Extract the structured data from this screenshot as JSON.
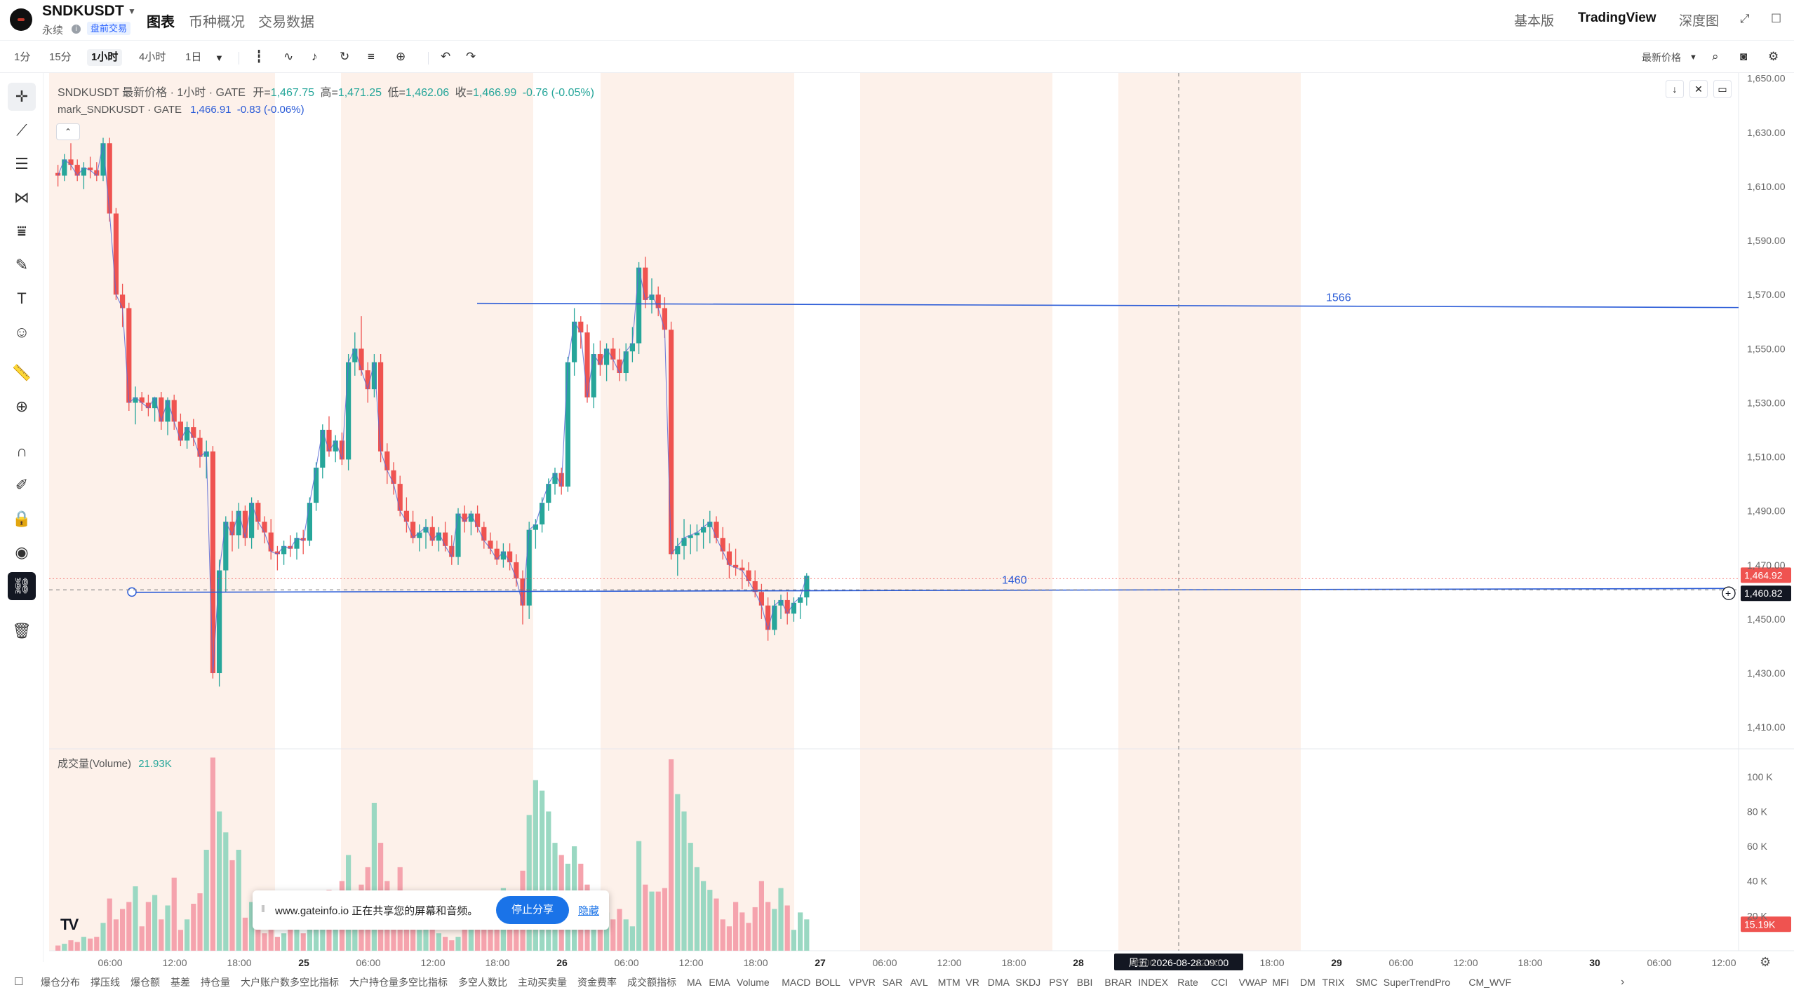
{
  "header": {
    "symbol": "SNDKUSDT",
    "contract_type": "永续",
    "badge": "盘前交易",
    "tabs": [
      {
        "label": "图表",
        "active": true
      },
      {
        "label": "币种概况",
        "active": false
      },
      {
        "label": "交易数据",
        "active": false
      }
    ],
    "views": [
      {
        "label": "基本版",
        "active": false
      },
      {
        "label": "TradingView",
        "active": true
      },
      {
        "label": "深度图",
        "active": false
      }
    ]
  },
  "toolbar": {
    "timeframes": [
      {
        "label": "1分",
        "active": false
      },
      {
        "label": "15分",
        "active": false
      },
      {
        "label": "1小时",
        "active": true
      },
      {
        "label": "4小时",
        "active": false
      },
      {
        "label": "1日",
        "active": false
      }
    ],
    "price_mode": "最新价格"
  },
  "legend": {
    "title": "SNDKUSDT 最新价格 · 1小时 · GATE",
    "open_label": "开=",
    "open": "1,467.75",
    "high_label": "高=",
    "high": "1,471.25",
    "low_label": "低=",
    "low": "1,462.06",
    "close_label": "收=",
    "close": "1,466.99",
    "change": "-0.76 (-0.05%)",
    "mark_name": "mark_SNDKUSDT · GATE",
    "mark_value": "1,466.91",
    "mark_change": "-0.83 (-0.06%)",
    "volume_label": "成交量(Volume)",
    "volume_value": "21.93K"
  },
  "drawings": {
    "upper_line_label": "1566",
    "lower_line_label": "1460"
  },
  "price_labels": {
    "current_red": "1,464.92",
    "crosshair": "1,460.82",
    "volume_current": "15.19K"
  },
  "crosshair_time": "周五 2026-08-28   09:00",
  "colors": {
    "up": "#26a69a",
    "down": "#ef5350",
    "up_volume": "#9ad8c2",
    "down_volume": "#f5a3ad",
    "session_shade": "#fdf1ea",
    "drawing_line": "#2a5bd7"
  },
  "chart_data": {
    "type": "candlestick",
    "interval": "1小时",
    "price_axis": [
      "1,650.00",
      "1,630.00",
      "1,610.00",
      "1,590.00",
      "1,570.00",
      "1,550.00",
      "1,530.00",
      "1,510.00",
      "1,490.00",
      "1,470.00",
      "1,450.00",
      "1,430.00",
      "1,410.00"
    ],
    "price_range": [
      1402,
      1652
    ],
    "volume_axis": [
      "100 K",
      "80 K",
      "60 K",
      "40 K",
      "20 K"
    ],
    "time_axis": [
      "06:00",
      "12:00",
      "18:00",
      "25",
      "06:00",
      "12:00",
      "18:00",
      "26",
      "06:00",
      "12:00",
      "18:00",
      "27",
      "06:00",
      "12:00",
      "18:00",
      "28",
      "06:00",
      "12:00",
      "18:00",
      "29",
      "06:00",
      "12:00",
      "18:00",
      "30",
      "06:00",
      "12:00"
    ],
    "horizontal_lines": [
      1566,
      1460
    ],
    "candles_ohlcv": [
      [
        1615,
        1618,
        1610,
        1614,
        3
      ],
      [
        1614,
        1622,
        1612,
        1620,
        4
      ],
      [
        1620,
        1626,
        1616,
        1618,
        6
      ],
      [
        1618,
        1620,
        1612,
        1614,
        5
      ],
      [
        1614,
        1619,
        1609,
        1617,
        8
      ],
      [
        1617,
        1621,
        1613,
        1616,
        7
      ],
      [
        1616,
        1619,
        1612,
        1614,
        8
      ],
      [
        1614,
        1628,
        1612,
        1626,
        16
      ],
      [
        1626,
        1628,
        1597,
        1600,
        30
      ],
      [
        1600,
        1602,
        1568,
        1570,
        18
      ],
      [
        1570,
        1574,
        1558,
        1565,
        24
      ],
      [
        1565,
        1567,
        1527,
        1530,
        28
      ],
      [
        1530,
        1536,
        1522,
        1532,
        37
      ],
      [
        1532,
        1534,
        1527,
        1530,
        14
      ],
      [
        1530,
        1533,
        1525,
        1528,
        28
      ],
      [
        1528,
        1531,
        1523,
        1532,
        32
      ],
      [
        1532,
        1534,
        1520,
        1523,
        18
      ],
      [
        1523,
        1532,
        1518,
        1531,
        26
      ],
      [
        1531,
        1533,
        1520,
        1523,
        42
      ],
      [
        1523,
        1526,
        1514,
        1516,
        12
      ],
      [
        1516,
        1523,
        1513,
        1521,
        18
      ],
      [
        1521,
        1524,
        1514,
        1517,
        27
      ],
      [
        1517,
        1520,
        1506,
        1510,
        33
      ],
      [
        1510,
        1516,
        1502,
        1512,
        58
      ],
      [
        1512,
        1514,
        1428,
        1430,
        111
      ],
      [
        1430,
        1472,
        1425,
        1468,
        80
      ],
      [
        1468,
        1488,
        1460,
        1486,
        68
      ],
      [
        1486,
        1490,
        1475,
        1481,
        52
      ],
      [
        1481,
        1493,
        1476,
        1490,
        58
      ],
      [
        1490,
        1492,
        1477,
        1480,
        19
      ],
      [
        1480,
        1495,
        1476,
        1493,
        28
      ],
      [
        1493,
        1494,
        1483,
        1486,
        15
      ],
      [
        1486,
        1488,
        1478,
        1482,
        10
      ],
      [
        1482,
        1487,
        1472,
        1475,
        12
      ],
      [
        1475,
        1477,
        1468,
        1474,
        8
      ],
      [
        1474,
        1479,
        1470,
        1477,
        10
      ],
      [
        1477,
        1481,
        1473,
        1476,
        28
      ],
      [
        1476,
        1482,
        1472,
        1480,
        15
      ],
      [
        1480,
        1483,
        1474,
        1479,
        10
      ],
      [
        1479,
        1495,
        1477,
        1493,
        22
      ],
      [
        1493,
        1508,
        1490,
        1506,
        20
      ],
      [
        1506,
        1522,
        1502,
        1520,
        28
      ],
      [
        1520,
        1525,
        1510,
        1512,
        35
      ],
      [
        1512,
        1518,
        1508,
        1516,
        24
      ],
      [
        1516,
        1519,
        1507,
        1509,
        40
      ],
      [
        1509,
        1548,
        1505,
        1545,
        55
      ],
      [
        1545,
        1556,
        1540,
        1550,
        24
      ],
      [
        1550,
        1562,
        1540,
        1542,
        38
      ],
      [
        1542,
        1545,
        1530,
        1535,
        48
      ],
      [
        1535,
        1548,
        1532,
        1545,
        85
      ],
      [
        1545,
        1548,
        1508,
        1512,
        62
      ],
      [
        1512,
        1515,
        1500,
        1505,
        40
      ],
      [
        1505,
        1508,
        1496,
        1500,
        26
      ],
      [
        1500,
        1503,
        1488,
        1490,
        48
      ],
      [
        1490,
        1495,
        1482,
        1486,
        22
      ],
      [
        1486,
        1490,
        1478,
        1480,
        20
      ],
      [
        1480,
        1485,
        1475,
        1482,
        12
      ],
      [
        1482,
        1487,
        1476,
        1484,
        18
      ],
      [
        1484,
        1488,
        1477,
        1479,
        15
      ],
      [
        1479,
        1484,
        1475,
        1482,
        10
      ],
      [
        1482,
        1486,
        1475,
        1477,
        8
      ],
      [
        1477,
        1481,
        1470,
        1473,
        6
      ],
      [
        1473,
        1491,
        1470,
        1489,
        8
      ],
      [
        1489,
        1492,
        1482,
        1486,
        14
      ],
      [
        1486,
        1490,
        1481,
        1489,
        25
      ],
      [
        1489,
        1492,
        1482,
        1484,
        34
      ],
      [
        1484,
        1486,
        1476,
        1479,
        28
      ],
      [
        1479,
        1482,
        1474,
        1476,
        20
      ],
      [
        1476,
        1479,
        1470,
        1472,
        28
      ],
      [
        1472,
        1478,
        1469,
        1475,
        36
      ],
      [
        1475,
        1478,
        1468,
        1471,
        28
      ],
      [
        1471,
        1474,
        1462,
        1465,
        30
      ],
      [
        1465,
        1468,
        1448,
        1455,
        46
      ],
      [
        1455,
        1486,
        1450,
        1483,
        78
      ],
      [
        1483,
        1487,
        1476,
        1485,
        98
      ],
      [
        1485,
        1495,
        1482,
        1493,
        92
      ],
      [
        1493,
        1502,
        1490,
        1500,
        80
      ],
      [
        1500,
        1506,
        1496,
        1504,
        62
      ],
      [
        1504,
        1506,
        1496,
        1499,
        55
      ],
      [
        1499,
        1547,
        1497,
        1545,
        50
      ],
      [
        1545,
        1565,
        1540,
        1560,
        60
      ],
      [
        1560,
        1562,
        1550,
        1556,
        50
      ],
      [
        1556,
        1559,
        1530,
        1532,
        38
      ],
      [
        1532,
        1552,
        1528,
        1548,
        30
      ],
      [
        1548,
        1553,
        1540,
        1544,
        18
      ],
      [
        1544,
        1552,
        1538,
        1550,
        22
      ],
      [
        1550,
        1554,
        1542,
        1546,
        18
      ],
      [
        1546,
        1550,
        1538,
        1541,
        24
      ],
      [
        1541,
        1552,
        1538,
        1549,
        18
      ],
      [
        1549,
        1558,
        1545,
        1552,
        14
      ],
      [
        1552,
        1582,
        1548,
        1580,
        63
      ],
      [
        1580,
        1584,
        1565,
        1568,
        38
      ],
      [
        1568,
        1576,
        1563,
        1570,
        34
      ],
      [
        1570,
        1573,
        1562,
        1565,
        34
      ],
      [
        1565,
        1569,
        1554,
        1557,
        36
      ],
      [
        1557,
        1560,
        1472,
        1474,
        110
      ],
      [
        1474,
        1480,
        1466,
        1477,
        90
      ],
      [
        1477,
        1487,
        1472,
        1480,
        80
      ],
      [
        1480,
        1485,
        1474,
        1481,
        62
      ],
      [
        1481,
        1485,
        1475,
        1482,
        48
      ],
      [
        1482,
        1487,
        1476,
        1484,
        40
      ],
      [
        1484,
        1490,
        1478,
        1486,
        35
      ],
      [
        1486,
        1488,
        1478,
        1480,
        30
      ],
      [
        1480,
        1484,
        1472,
        1475,
        18
      ],
      [
        1475,
        1478,
        1465,
        1470,
        14
      ],
      [
        1470,
        1476,
        1466,
        1469,
        28
      ],
      [
        1469,
        1472,
        1461,
        1468,
        22
      ],
      [
        1468,
        1471,
        1462,
        1464,
        16
      ],
      [
        1464,
        1468,
        1458,
        1460,
        25
      ],
      [
        1460,
        1463,
        1450,
        1455,
        40
      ],
      [
        1455,
        1458,
        1442,
        1446,
        28
      ],
      [
        1446,
        1457,
        1444,
        1455,
        24
      ],
      [
        1455,
        1459,
        1450,
        1457,
        36
      ],
      [
        1457,
        1460,
        1448,
        1452,
        26
      ],
      [
        1452,
        1458,
        1449,
        1456,
        12
      ],
      [
        1456,
        1459,
        1450,
        1458,
        22
      ],
      [
        1458,
        1467,
        1455,
        1466,
        18
      ]
    ]
  },
  "bottom_indicators": [
    "爆仓分布",
    "撑压线",
    "爆仓额",
    "基差",
    "持仓量",
    "大户账户数多空比指标",
    "大户持仓量多空比指标",
    "多空人数比",
    "主动买卖量",
    "资金费率",
    "成交额指标",
    "MA",
    "EMA",
    "Volume",
    "MACD",
    "BOLL",
    "VPVR",
    "SAR",
    "AVL",
    "MTM",
    "VR",
    "DMA",
    "SKDJ",
    "PSY",
    "BBI",
    "BRAR",
    "INDEX",
    "Rate",
    "CCI",
    "VWAP",
    "MFI",
    "DM",
    "TRIX",
    "SMC",
    "SuperTrendPro",
    "CM_WVF"
  ],
  "share_popup": {
    "message": "www.gateinfo.io 正在共享您的屏幕和音频。",
    "stop_label": "停止分享",
    "hide_label": "隐藏"
  }
}
